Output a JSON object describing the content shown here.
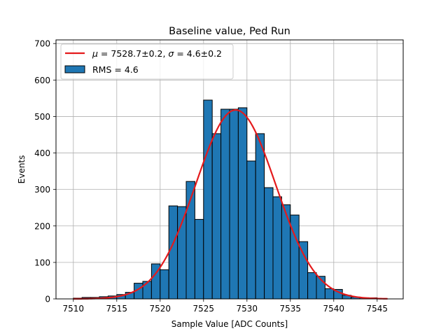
{
  "chart_data": {
    "type": "bar",
    "title": "Baseline value, Ped Run",
    "xlabel": "Sample Value [ADC Counts]",
    "ylabel": "Events",
    "xlim": [
      7508.0,
      7548.0
    ],
    "ylim": [
      0,
      710
    ],
    "xticks": [
      7510,
      7515,
      7520,
      7525,
      7530,
      7535,
      7540,
      7545
    ],
    "yticks": [
      0,
      100,
      200,
      300,
      400,
      500,
      600,
      700
    ],
    "grid": true,
    "legend_position": "top-left",
    "histogram": {
      "name": "RMS = 4.6",
      "color": "#1f77b4",
      "edgecolor": "#000000",
      "bin_width": 1.0,
      "bin_start": 7510.0,
      "counts": [
        2,
        4,
        4,
        6,
        8,
        12,
        18,
        43,
        48,
        96,
        80,
        255,
        253,
        322,
        218,
        545,
        453,
        520,
        520,
        524,
        378,
        453,
        305,
        280,
        258,
        230,
        157,
        72,
        62,
        28,
        26,
        10,
        5,
        3,
        3,
        1
      ]
    },
    "fit": {
      "name": "μ = 7528.7±0.2, σ = 4.6±0.2",
      "color": "#e41a1c",
      "type": "gaussian",
      "mu": 7528.7,
      "sigma": 4.6,
      "amplitude": 518,
      "x_range": [
        7510.0,
        7546.2
      ]
    },
    "legend": {
      "fit_label_mu": "μ",
      "fit_label_rest": " = 7528.7±0.2, ",
      "fit_label_sigma": "σ",
      "fit_label_end": " = 4.6±0.2",
      "hist_label": "RMS = 4.6"
    }
  }
}
